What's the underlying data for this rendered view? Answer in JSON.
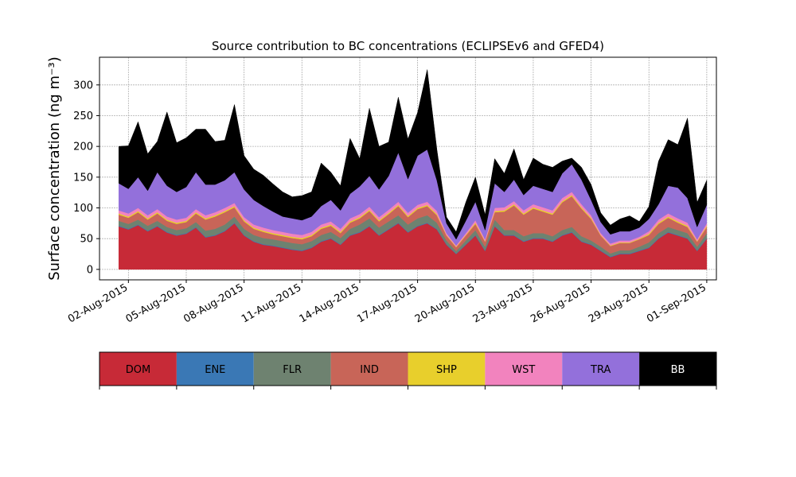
{
  "chart_data": {
    "type": "area",
    "stacked": true,
    "title": "Source contribution to BC concentrations (ECLIPSEv6 and GFED4)",
    "ylabel": "Surface concentration (ng m⁻³)",
    "xlabel": "",
    "x_range": [
      "2015-07-31T12:00",
      "2015-09-01T12:00"
    ],
    "ylim": [
      -17,
      345
    ],
    "yticks": [
      0,
      50,
      100,
      150,
      200,
      250,
      300
    ],
    "xticks": [
      "02-Aug-2015",
      "05-Aug-2015",
      "08-Aug-2015",
      "11-Aug-2015",
      "14-Aug-2015",
      "17-Aug-2015",
      "20-Aug-2015",
      "23-Aug-2015",
      "26-Aug-2015",
      "29-Aug-2015",
      "01-Sep-2015"
    ],
    "grid": true,
    "legend_position": "below",
    "x": [
      "2015-08-01T12:00",
      "2015-08-02T00:00",
      "2015-08-02T12:00",
      "2015-08-03T00:00",
      "2015-08-03T12:00",
      "2015-08-04T00:00",
      "2015-08-04T12:00",
      "2015-08-05T00:00",
      "2015-08-05T12:00",
      "2015-08-06T00:00",
      "2015-08-06T12:00",
      "2015-08-07T00:00",
      "2015-08-07T12:00",
      "2015-08-08T00:00",
      "2015-08-08T12:00",
      "2015-08-09T00:00",
      "2015-08-09T12:00",
      "2015-08-10T00:00",
      "2015-08-10T12:00",
      "2015-08-11T00:00",
      "2015-08-11T12:00",
      "2015-08-12T00:00",
      "2015-08-12T12:00",
      "2015-08-13T00:00",
      "2015-08-13T12:00",
      "2015-08-14T00:00",
      "2015-08-14T12:00",
      "2015-08-15T00:00",
      "2015-08-15T12:00",
      "2015-08-16T00:00",
      "2015-08-16T12:00",
      "2015-08-17T00:00",
      "2015-08-17T12:00",
      "2015-08-18T00:00",
      "2015-08-18T12:00",
      "2015-08-19T00:00",
      "2015-08-19T12:00",
      "2015-08-20T00:00",
      "2015-08-20T12:00",
      "2015-08-21T00:00",
      "2015-08-21T12:00",
      "2015-08-22T00:00",
      "2015-08-22T12:00",
      "2015-08-23T00:00",
      "2015-08-23T12:00",
      "2015-08-24T00:00",
      "2015-08-24T12:00",
      "2015-08-25T00:00",
      "2015-08-25T12:00",
      "2015-08-26T00:00",
      "2015-08-26T12:00",
      "2015-08-27T00:00",
      "2015-08-27T12:00",
      "2015-08-28T00:00",
      "2015-08-28T12:00",
      "2015-08-29T00:00",
      "2015-08-29T12:00",
      "2015-08-30T00:00",
      "2015-08-30T12:00",
      "2015-08-31T00:00",
      "2015-08-31T12:00",
      "2015-09-01T00:00"
    ],
    "series": [
      {
        "name": "DOM",
        "color": "#c72a37",
        "values": [
          70,
          65,
          72,
          62,
          70,
          60,
          55,
          58,
          68,
          52,
          55,
          62,
          75,
          55,
          45,
          40,
          38,
          35,
          32,
          30,
          35,
          45,
          50,
          40,
          55,
          60,
          70,
          55,
          65,
          75,
          60,
          70,
          75,
          65,
          40,
          25,
          40,
          55,
          30,
          70,
          55,
          55,
          45,
          50,
          50,
          45,
          55,
          60,
          45,
          40,
          30,
          20,
          25,
          25,
          30,
          35,
          50,
          60,
          55,
          50,
          30,
          50
        ]
      },
      {
        "name": "ENE",
        "color": "#3a78b5",
        "values": [
          1,
          1,
          1,
          1,
          1,
          1,
          1,
          1,
          1,
          1,
          1,
          1,
          1,
          1,
          1,
          1,
          1,
          1,
          1,
          1,
          1,
          1,
          1,
          1,
          1,
          1,
          1,
          1,
          1,
          1,
          1,
          1,
          1,
          1,
          1,
          1,
          1,
          1,
          1,
          1,
          1,
          1,
          1,
          1,
          1,
          1,
          1,
          1,
          1,
          1,
          1,
          1,
          1,
          1,
          1,
          1,
          1,
          1,
          1,
          1,
          1,
          1
        ]
      },
      {
        "name": "FLR",
        "color": "#6e8270",
        "values": [
          8,
          8,
          8,
          8,
          8,
          8,
          8,
          8,
          8,
          10,
          10,
          10,
          10,
          10,
          10,
          10,
          10,
          10,
          10,
          10,
          10,
          10,
          10,
          10,
          10,
          12,
          12,
          12,
          12,
          12,
          12,
          12,
          12,
          10,
          6,
          4,
          6,
          8,
          6,
          10,
          8,
          8,
          8,
          8,
          8,
          8,
          8,
          8,
          8,
          6,
          6,
          5,
          5,
          5,
          6,
          8,
          8,
          8,
          8,
          8,
          6,
          8
        ]
      },
      {
        "name": "IND",
        "color": "#c86558",
        "values": [
          10,
          10,
          12,
          10,
          12,
          10,
          10,
          10,
          14,
          18,
          20,
          20,
          15,
          12,
          10,
          10,
          8,
          8,
          8,
          8,
          8,
          10,
          10,
          8,
          10,
          10,
          12,
          10,
          12,
          15,
          12,
          15,
          15,
          12,
          8,
          6,
          8,
          10,
          8,
          12,
          30,
          40,
          35,
          40,
          35,
          35,
          45,
          50,
          45,
          35,
          18,
          12,
          12,
          12,
          12,
          12,
          15,
          15,
          12,
          10,
          8,
          10
        ]
      },
      {
        "name": "SHP",
        "color": "#e8cf2c",
        "values": [
          2,
          2,
          2,
          2,
          2,
          2,
          2,
          2,
          2,
          2,
          2,
          2,
          2,
          2,
          2,
          2,
          2,
          2,
          2,
          2,
          2,
          2,
          2,
          2,
          2,
          2,
          2,
          2,
          2,
          2,
          2,
          2,
          2,
          2,
          1,
          1,
          1,
          2,
          1,
          2,
          2,
          2,
          2,
          2,
          2,
          2,
          2,
          2,
          2,
          2,
          1,
          1,
          1,
          1,
          1,
          2,
          2,
          2,
          2,
          2,
          1,
          2
        ]
      },
      {
        "name": "WST",
        "color": "#f283be",
        "values": [
          5,
          5,
          5,
          5,
          5,
          5,
          5,
          5,
          5,
          5,
          5,
          5,
          5,
          5,
          5,
          5,
          5,
          5,
          5,
          5,
          5,
          5,
          5,
          5,
          5,
          5,
          5,
          5,
          5,
          5,
          5,
          5,
          5,
          5,
          3,
          2,
          3,
          4,
          3,
          5,
          5,
          5,
          5,
          5,
          5,
          5,
          5,
          5,
          5,
          4,
          3,
          3,
          3,
          3,
          3,
          4,
          5,
          5,
          5,
          5,
          3,
          4
        ]
      },
      {
        "name": "TRA",
        "color": "#9370db",
        "values": [
          44,
          40,
          50,
          40,
          60,
          50,
          45,
          50,
          60,
          50,
          45,
          45,
          50,
          45,
          40,
          35,
          30,
          25,
          25,
          24,
          25,
          30,
          35,
          30,
          40,
          45,
          50,
          45,
          55,
          80,
          55,
          80,
          85,
          50,
          16,
          10,
          20,
          30,
          15,
          40,
          25,
          35,
          25,
          30,
          30,
          30,
          40,
          45,
          40,
          25,
          18,
          15,
          15,
          15,
          15,
          20,
          25,
          45,
          50,
          40,
          20,
          30
        ]
      },
      {
        "name": "BB",
        "color": "#000000",
        "values": [
          60,
          70,
          90,
          60,
          50,
          120,
          80,
          80,
          70,
          90,
          70,
          65,
          110,
          55,
          50,
          50,
          45,
          40,
          35,
          40,
          40,
          70,
          45,
          40,
          90,
          45,
          110,
          70,
          55,
          90,
          65,
          70,
          130,
          50,
          10,
          12,
          30,
          40,
          25,
          40,
          30,
          50,
          25,
          45,
          40,
          40,
          20,
          10,
          20,
          25,
          15,
          15,
          20,
          25,
          10,
          20,
          70,
          75,
          70,
          130,
          40,
          40
        ]
      }
    ]
  },
  "legend": {
    "items": [
      {
        "label": "DOM",
        "color": "#c72a37",
        "text_color": "#000000"
      },
      {
        "label": "ENE",
        "color": "#3a78b5",
        "text_color": "#000000"
      },
      {
        "label": "FLR",
        "color": "#6e8270",
        "text_color": "#000000"
      },
      {
        "label": "IND",
        "color": "#c86558",
        "text_color": "#000000"
      },
      {
        "label": "SHP",
        "color": "#e8cf2c",
        "text_color": "#000000"
      },
      {
        "label": "WST",
        "color": "#f283be",
        "text_color": "#000000"
      },
      {
        "label": "TRA",
        "color": "#9370db",
        "text_color": "#000000"
      },
      {
        "label": "BB",
        "color": "#000000",
        "text_color": "#ffffff"
      }
    ]
  }
}
